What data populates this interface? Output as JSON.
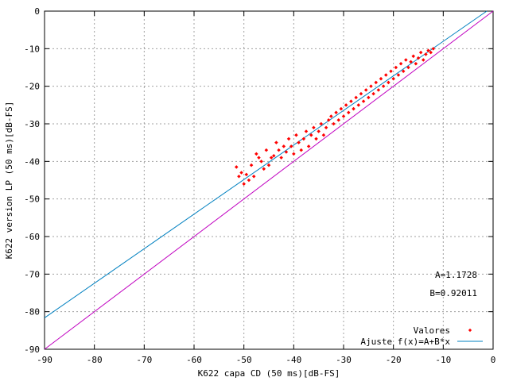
{
  "chart_data": {
    "type": "scatter",
    "title": "",
    "xlabel": "K622 capa CD (50 ms)[dB-FS]",
    "ylabel": "K622 version LP (50 ms)[dB-FS]",
    "xlim": [
      -90,
      0
    ],
    "ylim": [
      -90,
      0
    ],
    "x_ticks": [
      "-90",
      "-80",
      "-70",
      "-60",
      "-50",
      "-40",
      "-30",
      "-20",
      "-10",
      "0"
    ],
    "y_ticks": [
      "0",
      "-10",
      "-20",
      "-30",
      "-40",
      "-50",
      "-60",
      "-70",
      "-80",
      "-90"
    ],
    "grid": true,
    "legend_position": "bottom-right",
    "annotations": [
      "A=1.1728",
      "B=0.92011"
    ],
    "series": [
      {
        "name": "Valores",
        "kind": "points",
        "color": "#ff0000",
        "points": [
          [
            -51.5,
            -41.5
          ],
          [
            -51,
            -44
          ],
          [
            -50.5,
            -43
          ],
          [
            -50,
            -46
          ],
          [
            -49.5,
            -43.5
          ],
          [
            -49,
            -45
          ],
          [
            -48.5,
            -41
          ],
          [
            -48,
            -44
          ],
          [
            -47.5,
            -38
          ],
          [
            -47,
            -39
          ],
          [
            -46.5,
            -40
          ],
          [
            -46,
            -42
          ],
          [
            -45.5,
            -37
          ],
          [
            -45,
            -41
          ],
          [
            -44.5,
            -39
          ],
          [
            -44,
            -38.5
          ],
          [
            -43.5,
            -35
          ],
          [
            -43,
            -37
          ],
          [
            -42.5,
            -39
          ],
          [
            -42,
            -36
          ],
          [
            -41.5,
            -37.5
          ],
          [
            -41,
            -34
          ],
          [
            -40.5,
            -36
          ],
          [
            -40,
            -38
          ],
          [
            -39.5,
            -33
          ],
          [
            -39,
            -35
          ],
          [
            -38.5,
            -37
          ],
          [
            -38,
            -34
          ],
          [
            -37.5,
            -32
          ],
          [
            -37,
            -36
          ],
          [
            -36.5,
            -33
          ],
          [
            -36,
            -31
          ],
          [
            -35.5,
            -34
          ],
          [
            -35,
            -32
          ],
          [
            -34.5,
            -30
          ],
          [
            -34,
            -33
          ],
          [
            -33.5,
            -31
          ],
          [
            -33,
            -29
          ],
          [
            -32.5,
            -28
          ],
          [
            -32,
            -30
          ],
          [
            -31.5,
            -27
          ],
          [
            -31,
            -29
          ],
          [
            -30.5,
            -26
          ],
          [
            -30,
            -28
          ],
          [
            -29.5,
            -25
          ],
          [
            -29,
            -27
          ],
          [
            -28.5,
            -24
          ],
          [
            -28,
            -26
          ],
          [
            -27.5,
            -23
          ],
          [
            -27,
            -25
          ],
          [
            -26.5,
            -22
          ],
          [
            -26,
            -24
          ],
          [
            -25.5,
            -21
          ],
          [
            -25,
            -23
          ],
          [
            -24.5,
            -20
          ],
          [
            -24,
            -22
          ],
          [
            -23.5,
            -19
          ],
          [
            -23,
            -21
          ],
          [
            -22.5,
            -18
          ],
          [
            -22,
            -20
          ],
          [
            -21.5,
            -17
          ],
          [
            -21,
            -19
          ],
          [
            -20.5,
            -16
          ],
          [
            -20,
            -18
          ],
          [
            -19.5,
            -15
          ],
          [
            -19,
            -17
          ],
          [
            -18.5,
            -14
          ],
          [
            -18,
            -16
          ],
          [
            -17.5,
            -13
          ],
          [
            -17,
            -15
          ],
          [
            -16.5,
            -13.5
          ],
          [
            -16,
            -12
          ],
          [
            -15.5,
            -14
          ],
          [
            -15,
            -12.5
          ],
          [
            -14.5,
            -11
          ],
          [
            -14,
            -13
          ],
          [
            -13.5,
            -11.5
          ],
          [
            -13,
            -10.5
          ],
          [
            -12.5,
            -11
          ],
          [
            -12,
            -10
          ]
        ]
      },
      {
        "name": "Ajuste f(x)=A+B*x",
        "kind": "line",
        "color": "#0080c0",
        "x": [
          -90,
          -1.27
        ],
        "y": [
          -81.64,
          0
        ]
      },
      {
        "name": "",
        "kind": "line",
        "color": "#c000c0",
        "x": [
          -90,
          0
        ],
        "y": [
          -90,
          0
        ]
      }
    ]
  }
}
